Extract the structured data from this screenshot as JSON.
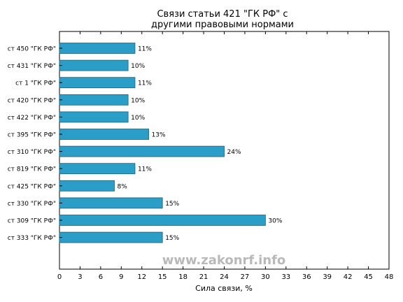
{
  "chart_data": {
    "type": "bar",
    "orientation": "horizontal",
    "title": [
      "Связи статьи 421 \"ГК РФ\" с",
      "другими правовыми нормами"
    ],
    "xlabel": "Сила связи, %",
    "xlim": [
      0,
      48
    ],
    "xticks": [
      0,
      3,
      6,
      9,
      12,
      15,
      18,
      21,
      24,
      27,
      30,
      33,
      36,
      39,
      42,
      45,
      48
    ],
    "categories": [
      "ст 450 \"ГК РФ\"",
      "ст 431 \"ГК РФ\"",
      "ст 1 \"ГК РФ\"",
      "ст 420 \"ГК РФ\"",
      "ст 422 \"ГК РФ\"",
      "ст 395 \"ГК РФ\"",
      "ст 310 \"ГК РФ\"",
      "ст 819 \"ГК РФ\"",
      "ст 425 \"ГК РФ\"",
      "ст 330 \"ГК РФ\"",
      "ст 309 \"ГК РФ\"",
      "ст 333 \"ГК РФ\""
    ],
    "values": [
      11,
      10,
      11,
      10,
      10,
      13,
      24,
      11,
      8,
      15,
      30,
      15
    ],
    "data_labels": [
      "11%",
      "10%",
      "11%",
      "10%",
      "10%",
      "13%",
      "24%",
      "11%",
      "8%",
      "15%",
      "30%",
      "15%"
    ],
    "bar_color": "#2a9ec6",
    "grid": false,
    "legend": "none"
  },
  "watermark": "www.zakonrf.info"
}
